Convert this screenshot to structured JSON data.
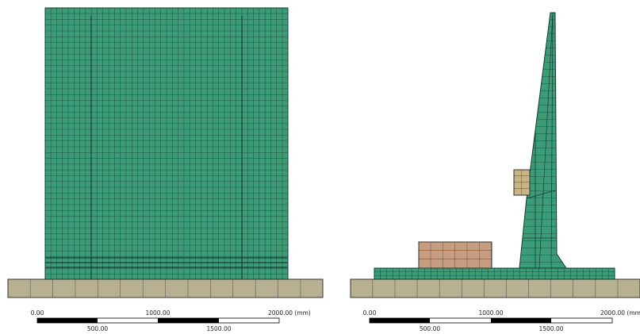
{
  "views": [
    {
      "scale": {
        "top_labels": [
          "0.00",
          "1000.00",
          "2000.00 (mm)"
        ],
        "bottom_labels": [
          "500.00",
          "1500.00"
        ]
      }
    },
    {
      "scale": {
        "top_labels": [
          "0.00",
          "1000.00",
          "2000.00 (mm"
        ],
        "bottom_labels": [
          "500.00",
          "1500.00"
        ]
      }
    }
  ]
}
